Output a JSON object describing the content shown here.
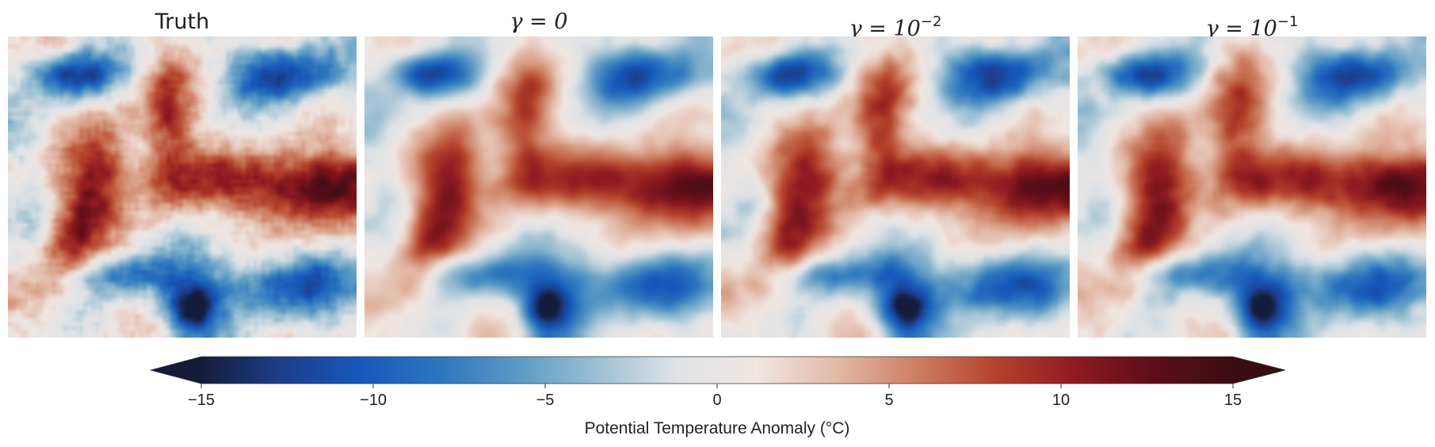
{
  "chart_data": {
    "type": "heatmap",
    "panels": [
      {
        "title": "Truth",
        "title_symbol": "",
        "title_exp": "",
        "smoothing": 1
      },
      {
        "title": "",
        "title_symbol": "γ = 0",
        "title_exp": "",
        "smoothing": 3
      },
      {
        "title": "",
        "title_symbol": "γ = 10",
        "title_exp": "−2",
        "smoothing": 2
      },
      {
        "title": "",
        "title_symbol": "γ = 10",
        "title_exp": "−1",
        "smoothing": 2
      }
    ],
    "colorbar": {
      "label": "Potential Temperature Anomaly (°C)",
      "vmin": -15,
      "vmax": 15,
      "ticks": [
        -15,
        -10,
        -5,
        0,
        5,
        10,
        15
      ],
      "tick_labels": [
        "−15",
        "−10",
        "−5",
        "0",
        "5",
        "10",
        "15"
      ],
      "extend": "both",
      "colormap": [
        "#141c3a",
        "#1d3e8c",
        "#1658ba",
        "#2c76c0",
        "#5b9ac4",
        "#9dc0d4",
        "#dfe3e6",
        "#f0e6e2",
        "#e3b9a7",
        "#cd7f62",
        "#b5432c",
        "#8f1a22",
        "#5c0e18",
        "#3a0d14"
      ]
    }
  }
}
